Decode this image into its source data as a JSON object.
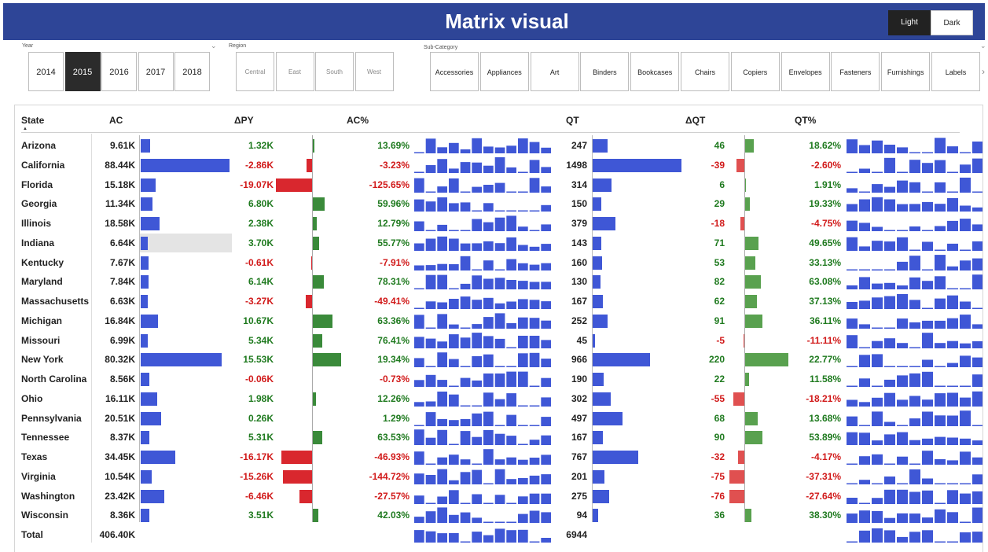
{
  "header": {
    "title": "Matrix visual"
  },
  "theme": {
    "light_label": "Light",
    "dark_label": "Dark"
  },
  "slicers": {
    "year": {
      "label": "Year",
      "options": [
        "2014",
        "2015",
        "2016",
        "2017",
        "2018"
      ],
      "selected": "2015"
    },
    "region": {
      "label": "Region",
      "options": [
        "Central",
        "East",
        "South",
        "West"
      ]
    },
    "subcategory": {
      "label": "Sub-Category",
      "options": [
        "Accessories",
        "Appliances",
        "Art",
        "Binders",
        "Bookcases",
        "Chairs",
        "Copiers",
        "Envelopes",
        "Fasteners",
        "Furnishings",
        "Labels"
      ]
    }
  },
  "colors": {
    "blue": "#3f57d6",
    "green_bar": "#3a8a3a",
    "red_bar": "#d9272e",
    "qt_green": "#59a14f",
    "qt_red": "#e05050",
    "highlight": "#e4e4e4",
    "pos_text": "#1f7a1f",
    "neg_text": "#d11a1a"
  },
  "icons": {
    "scroll_right": "chevron-right-icon",
    "slicer_dropdown": "chevron-down-icon",
    "sort": "sort-up-icon"
  },
  "matrix": {
    "columns": {
      "state": "State",
      "ac": "AC",
      "dpy": "ΔPY",
      "acp": "AC%",
      "qt": "QT",
      "dqt": "ΔQT",
      "qtp": "QT%"
    },
    "rows": [
      {
        "state": "Arizona",
        "ac": "9.61K",
        "ac_v": 9.61,
        "dpy": "1.32K",
        "dpy_v": 1.32,
        "acp": "13.69%",
        "qt": "247",
        "qt_v": 247,
        "dqt": "46",
        "dqt_v": 46,
        "qtp": "18.62%"
      },
      {
        "state": "California",
        "ac": "88.44K",
        "ac_v": 88.44,
        "dpy": "-2.86K",
        "dpy_v": -2.86,
        "acp": "-3.23%",
        "qt": "1498",
        "qt_v": 1498,
        "dqt": "-39",
        "dqt_v": -39,
        "qtp": "-2.60%"
      },
      {
        "state": "Florida",
        "ac": "15.18K",
        "ac_v": 15.18,
        "dpy": "-19.07K",
        "dpy_v": -19.07,
        "acp": "-125.65%",
        "qt": "314",
        "qt_v": 314,
        "dqt": "6",
        "dqt_v": 6,
        "qtp": "1.91%"
      },
      {
        "state": "Georgia",
        "ac": "11.34K",
        "ac_v": 11.34,
        "dpy": "6.80K",
        "dpy_v": 6.8,
        "acp": "59.96%",
        "qt": "150",
        "qt_v": 150,
        "dqt": "29",
        "dqt_v": 29,
        "qtp": "19.33%"
      },
      {
        "state": "Illinois",
        "ac": "18.58K",
        "ac_v": 18.58,
        "dpy": "2.38K",
        "dpy_v": 2.38,
        "acp": "12.79%",
        "qt": "379",
        "qt_v": 379,
        "dqt": "-18",
        "dqt_v": -18,
        "qtp": "-4.75%"
      },
      {
        "state": "Indiana",
        "ac": "6.64K",
        "ac_v": 6.64,
        "dpy": "3.70K",
        "dpy_v": 3.7,
        "acp": "55.77%",
        "qt": "143",
        "qt_v": 143,
        "dqt": "71",
        "dqt_v": 71,
        "qtp": "49.65%"
      },
      {
        "state": "Kentucky",
        "ac": "7.67K",
        "ac_v": 7.67,
        "dpy": "-0.61K",
        "dpy_v": -0.61,
        "acp": "-7.91%",
        "qt": "160",
        "qt_v": 160,
        "dqt": "53",
        "dqt_v": 53,
        "qtp": "33.13%"
      },
      {
        "state": "Maryland",
        "ac": "7.84K",
        "ac_v": 7.84,
        "dpy": "6.14K",
        "dpy_v": 6.14,
        "acp": "78.31%",
        "qt": "130",
        "qt_v": 130,
        "dqt": "82",
        "dqt_v": 82,
        "qtp": "63.08%"
      },
      {
        "state": "Massachusetts",
        "ac": "6.63K",
        "ac_v": 6.63,
        "dpy": "-3.27K",
        "dpy_v": -3.27,
        "acp": "-49.41%",
        "qt": "167",
        "qt_v": 167,
        "dqt": "62",
        "dqt_v": 62,
        "qtp": "37.13%"
      },
      {
        "state": "Michigan",
        "ac": "16.84K",
        "ac_v": 16.84,
        "dpy": "10.67K",
        "dpy_v": 10.67,
        "acp": "63.36%",
        "qt": "252",
        "qt_v": 252,
        "dqt": "91",
        "dqt_v": 91,
        "qtp": "36.11%"
      },
      {
        "state": "Missouri",
        "ac": "6.99K",
        "ac_v": 6.99,
        "dpy": "5.34K",
        "dpy_v": 5.34,
        "acp": "76.41%",
        "qt": "45",
        "qt_v": 45,
        "dqt": "-5",
        "dqt_v": -5,
        "qtp": "-11.11%"
      },
      {
        "state": "New York",
        "ac": "80.32K",
        "ac_v": 80.32,
        "dpy": "15.53K",
        "dpy_v": 15.53,
        "acp": "19.34%",
        "qt": "966",
        "qt_v": 966,
        "dqt": "220",
        "dqt_v": 220,
        "qtp": "22.77%"
      },
      {
        "state": "North Carolina",
        "ac": "8.56K",
        "ac_v": 8.56,
        "dpy": "-0.06K",
        "dpy_v": -0.06,
        "acp": "-0.73%",
        "qt": "190",
        "qt_v": 190,
        "dqt": "22",
        "dqt_v": 22,
        "qtp": "11.58%"
      },
      {
        "state": "Ohio",
        "ac": "16.11K",
        "ac_v": 16.11,
        "dpy": "1.98K",
        "dpy_v": 1.98,
        "acp": "12.26%",
        "qt": "302",
        "qt_v": 302,
        "dqt": "-55",
        "dqt_v": -55,
        "qtp": "-18.21%"
      },
      {
        "state": "Pennsylvania",
        "ac": "20.51K",
        "ac_v": 20.51,
        "dpy": "0.26K",
        "dpy_v": 0.26,
        "acp": "1.29%",
        "qt": "497",
        "qt_v": 497,
        "dqt": "68",
        "dqt_v": 68,
        "qtp": "13.68%"
      },
      {
        "state": "Tennessee",
        "ac": "8.37K",
        "ac_v": 8.37,
        "dpy": "5.31K",
        "dpy_v": 5.31,
        "acp": "63.53%",
        "qt": "167",
        "qt_v": 167,
        "dqt": "90",
        "dqt_v": 90,
        "qtp": "53.89%"
      },
      {
        "state": "Texas",
        "ac": "34.45K",
        "ac_v": 34.45,
        "dpy": "-16.17K",
        "dpy_v": -16.17,
        "acp": "-46.93%",
        "qt": "767",
        "qt_v": 767,
        "dqt": "-32",
        "dqt_v": -32,
        "qtp": "-4.17%"
      },
      {
        "state": "Virginia",
        "ac": "10.54K",
        "ac_v": 10.54,
        "dpy": "-15.26K",
        "dpy_v": -15.26,
        "acp": "-144.72%",
        "qt": "201",
        "qt_v": 201,
        "dqt": "-75",
        "dqt_v": -75,
        "qtp": "-37.31%"
      },
      {
        "state": "Washington",
        "ac": "23.42K",
        "ac_v": 23.42,
        "dpy": "-6.46K",
        "dpy_v": -6.46,
        "acp": "-27.57%",
        "qt": "275",
        "qt_v": 275,
        "dqt": "-76",
        "dqt_v": -76,
        "qtp": "-27.64%"
      },
      {
        "state": "Wisconsin",
        "ac": "8.36K",
        "ac_v": 8.36,
        "dpy": "3.51K",
        "dpy_v": 3.51,
        "acp": "42.03%",
        "qt": "94",
        "qt_v": 94,
        "dqt": "36",
        "dqt_v": 36,
        "qtp": "38.30%"
      }
    ],
    "total": {
      "state": "Total",
      "ac": "406.40K",
      "qt": "6944"
    },
    "highlighted_row": "Indiana"
  }
}
